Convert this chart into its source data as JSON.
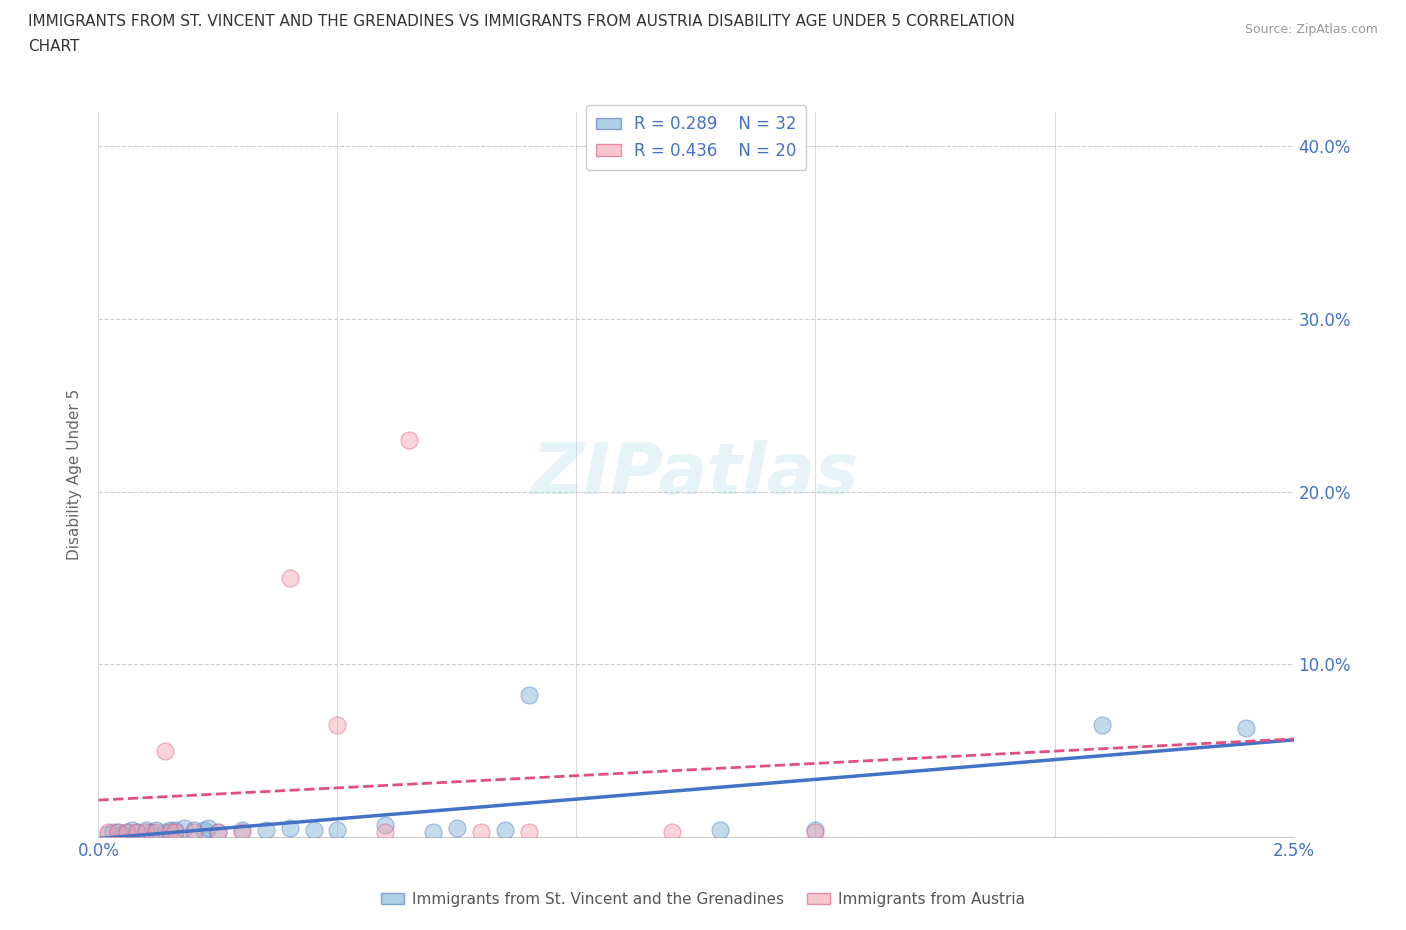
{
  "title_line1": "IMMIGRANTS FROM ST. VINCENT AND THE GRENADINES VS IMMIGRANTS FROM AUSTRIA DISABILITY AGE UNDER 5 CORRELATION",
  "title_line2": "CHART",
  "source": "Source: ZipAtlas.com",
  "ylabel": "Disability Age Under 5",
  "xlim": [
    0.0,
    0.025
  ],
  "ylim": [
    0.0,
    0.42
  ],
  "xticks": [
    0.0,
    0.005,
    0.01,
    0.015,
    0.02,
    0.025
  ],
  "xtick_labels": [
    "0.0%",
    "",
    "",
    "",
    "",
    "2.5%"
  ],
  "yticks": [
    0.0,
    0.1,
    0.2,
    0.3,
    0.4
  ],
  "ytick_labels": [
    "",
    "10.0%",
    "20.0%",
    "30.0%",
    "40.0%"
  ],
  "grid_color": "#cccccc",
  "background_color": "#ffffff",
  "series1": {
    "label": "Immigrants from St. Vincent and the Grenadines",
    "R": 0.289,
    "N": 32,
    "x": [
      0.0002,
      0.0003,
      0.0004,
      0.0005,
      0.0006,
      0.0007,
      0.0008,
      0.001,
      0.0011,
      0.0012,
      0.0014,
      0.0015,
      0.0016,
      0.0018,
      0.002,
      0.0022,
      0.0023,
      0.0025,
      0.003,
      0.0035,
      0.004,
      0.0045,
      0.005,
      0.006,
      0.007,
      0.0075,
      0.0085,
      0.009,
      0.013,
      0.015,
      0.021,
      0.024
    ],
    "y": [
      0.002,
      0.003,
      0.003,
      0.002,
      0.003,
      0.004,
      0.003,
      0.004,
      0.003,
      0.004,
      0.003,
      0.004,
      0.004,
      0.005,
      0.004,
      0.004,
      0.005,
      0.003,
      0.004,
      0.004,
      0.005,
      0.004,
      0.004,
      0.007,
      0.003,
      0.005,
      0.004,
      0.082,
      0.004,
      0.004,
      0.065,
      0.063
    ]
  },
  "series2": {
    "label": "Immigrants from Austria",
    "R": 0.436,
    "N": 20,
    "x": [
      0.0002,
      0.0004,
      0.0006,
      0.0008,
      0.001,
      0.0012,
      0.0014,
      0.0015,
      0.0016,
      0.002,
      0.0025,
      0.003,
      0.004,
      0.005,
      0.006,
      0.0065,
      0.008,
      0.009,
      0.012,
      0.015
    ],
    "y": [
      0.003,
      0.003,
      0.003,
      0.003,
      0.003,
      0.003,
      0.05,
      0.003,
      0.003,
      0.003,
      0.003,
      0.003,
      0.15,
      0.065,
      0.003,
      0.23,
      0.003,
      0.003,
      0.003,
      0.003
    ]
  },
  "line_color_blue": "#4472c4",
  "line_color_pink": "#e05080",
  "scatter_color_blue": "#7bafd4",
  "scatter_color_pink": "#f4a0b0",
  "watermark_text": "ZIPatlas",
  "watermark_color": "#add8e6",
  "watermark_alpha": 0.3
}
